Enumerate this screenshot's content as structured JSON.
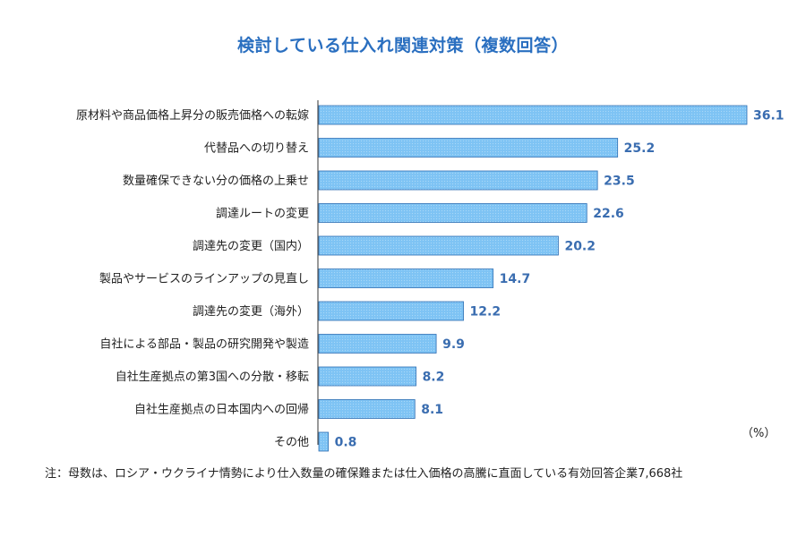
{
  "chart_data": {
    "type": "bar",
    "orientation": "horizontal",
    "title": "検討している仕入れ関連対策（複数回答）",
    "categories": [
      "原材料や商品価格上昇分の販売価格への転嫁",
      "代替品への切り替え",
      "数量確保できない分の価格の上乗せ",
      "調達ルートの変更",
      "調達先の変更（国内）",
      "製品やサービスのラインアップの見直し",
      "調達先の変更（海外）",
      "自社による部品・製品の研究開発や製造",
      "自社生産拠点の第3国への分散・移転",
      "自社生産拠点の日本国内への回帰",
      "その他"
    ],
    "values": [
      36.1,
      25.2,
      23.5,
      22.6,
      20.2,
      14.7,
      12.2,
      9.9,
      8.2,
      8.1,
      0.8
    ],
    "value_labels": [
      "36.1",
      "25.2",
      "23.5",
      "22.6",
      "20.2",
      "14.7",
      "12.2",
      "9.9",
      "8.2",
      "8.1",
      "0.8"
    ],
    "unit": "（%）",
    "xlim": [
      0,
      36.1
    ],
    "grid": false,
    "bar_color": "#7ec3f4",
    "bar_border_color": "#2f6fb3",
    "value_label_color": "#3a6db0",
    "title_color": "#2a6fc0"
  },
  "footnote": "注：母数は、ロシア・ウクライナ情勢により仕入数量の確保難または仕入価格の高騰に直面している有効回答企業7,668社"
}
